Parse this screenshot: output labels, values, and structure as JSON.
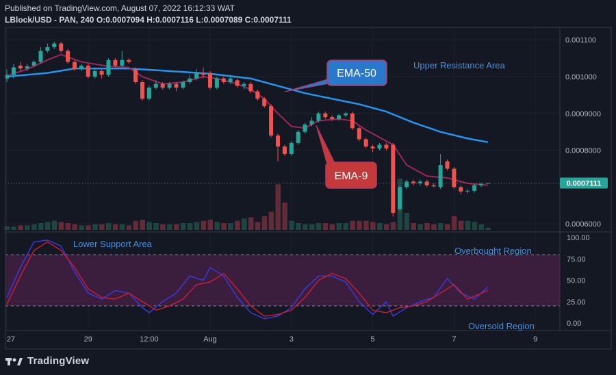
{
  "header": {
    "published": "Published on TradingView.com, August 07, 2022 16:12:33 WAT",
    "symbol": "LBlock/USD - PAN, 240",
    "ohlc": "O:0.0007094 H:0.0007116 L:0.0007089 C:0.0007111"
  },
  "brand": "TradingView",
  "colors": {
    "up": "#26a69a",
    "down": "#ef5350",
    "ema50": "#2196f3",
    "ema9": "#9c2758",
    "rsi_zone": "#3b1d3d",
    "price_tag": "#26a69a"
  },
  "price_axis": {
    "ticks": [
      {
        "value": 0.0011,
        "label": "0.001100"
      },
      {
        "value": 0.001,
        "label": "0.001000"
      },
      {
        "value": 0.0009,
        "label": "0.0009000"
      },
      {
        "value": 0.0008,
        "label": "0.0008000"
      },
      {
        "value": 0.0006,
        "label": "0.0006000"
      }
    ],
    "last_price": {
      "value": 0.0007111,
      "label": "0.0007111"
    }
  },
  "rsi_axis": {
    "ticks": [
      {
        "value": 100,
        "label": "100.00"
      },
      {
        "value": 75,
        "label": "75.00"
      },
      {
        "value": 50,
        "label": "50.00"
      },
      {
        "value": 25,
        "label": "25.00"
      },
      {
        "value": 0,
        "label": "0.00"
      }
    ]
  },
  "time_axis": {
    "ticks": [
      {
        "t": 0,
        "label": "27"
      },
      {
        "t": 12,
        "label": "29"
      },
      {
        "t": 21,
        "label": "12:00"
      },
      {
        "t": 30,
        "label": "Aug"
      },
      {
        "t": 42,
        "label": "3"
      },
      {
        "t": 54,
        "label": "5"
      },
      {
        "t": 66,
        "label": "7"
      },
      {
        "t": 78,
        "label": "9"
      }
    ]
  },
  "annotations": {
    "ema50": "EMA-50",
    "ema9": "EMA-9",
    "upper_resistance": "Upper Resistance Area",
    "lower_support": "Lower Support Area",
    "overbought": "Overbought Region",
    "oversold": "Oversold Region"
  },
  "chart_data": {
    "type": "candlestick",
    "candles": [
      {
        "t": 0,
        "o": 0.000995,
        "c": 0.001005,
        "h": 0.00102,
        "l": 0.000985
      },
      {
        "t": 1,
        "o": 0.001005,
        "c": 0.001025,
        "h": 0.001035,
        "l": 0.000995
      },
      {
        "t": 2,
        "o": 0.00103,
        "c": 0.001022,
        "h": 0.00104,
        "l": 0.001015
      },
      {
        "t": 3,
        "o": 0.001022,
        "c": 0.001028,
        "h": 0.001035,
        "l": 0.001015
      },
      {
        "t": 4,
        "o": 0.00103,
        "c": 0.00104,
        "h": 0.001045,
        "l": 0.001025
      },
      {
        "t": 5,
        "o": 0.00104,
        "c": 0.00107,
        "h": 0.00108,
        "l": 0.001035
      },
      {
        "t": 6,
        "o": 0.00107,
        "c": 0.00108,
        "h": 0.00109,
        "l": 0.001065
      },
      {
        "t": 7,
        "o": 0.00108,
        "c": 0.00109,
        "h": 0.001095,
        "l": 0.001075
      },
      {
        "t": 8,
        "o": 0.00109,
        "c": 0.00107,
        "h": 0.001095,
        "l": 0.001065
      },
      {
        "t": 9,
        "o": 0.00107,
        "c": 0.00104,
        "h": 0.001075,
        "l": 0.001035
      },
      {
        "t": 10,
        "o": 0.00104,
        "c": 0.00102,
        "h": 0.001045,
        "l": 0.001015
      },
      {
        "t": 11,
        "o": 0.00102,
        "c": 0.00103,
        "h": 0.001035,
        "l": 0.001015
      },
      {
        "t": 12,
        "o": 0.00103,
        "c": 0.001,
        "h": 0.001035,
        "l": 0.000995
      },
      {
        "t": 13,
        "o": 0.001,
        "c": 0.001015,
        "h": 0.001025,
        "l": 0.000995
      },
      {
        "t": 14,
        "o": 0.001015,
        "c": 0.001005,
        "h": 0.00102,
        "l": 0.000995
      },
      {
        "t": 15,
        "o": 0.001005,
        "c": 0.001045,
        "h": 0.00105,
        "l": 0.001
      },
      {
        "t": 16,
        "o": 0.001045,
        "c": 0.00103,
        "h": 0.00105,
        "l": 0.001025
      },
      {
        "t": 17,
        "o": 0.00103,
        "c": 0.001045,
        "h": 0.00107,
        "l": 0.001025
      },
      {
        "t": 18,
        "o": 0.001045,
        "c": 0.00104,
        "h": 0.00105,
        "l": 0.001035
      },
      {
        "t": 19,
        "o": 0.00102,
        "c": 0.000985,
        "h": 0.001025,
        "l": 0.00098
      },
      {
        "t": 20,
        "o": 0.000985,
        "c": 0.00094,
        "h": 0.00099,
        "l": 0.000935
      },
      {
        "t": 21,
        "o": 0.00094,
        "c": 0.00097,
        "h": 0.000975,
        "l": 0.000935
      },
      {
        "t": 22,
        "o": 0.00097,
        "c": 0.00098,
        "h": 0.00099,
        "l": 0.000965
      },
      {
        "t": 23,
        "o": 0.00098,
        "c": 0.00097,
        "h": 0.000985,
        "l": 0.000965
      },
      {
        "t": 24,
        "o": 0.00097,
        "c": 0.00098,
        "h": 0.000985,
        "l": 0.000965
      },
      {
        "t": 25,
        "o": 0.00098,
        "c": 0.00097,
        "h": 0.000985,
        "l": 0.00096
      },
      {
        "t": 26,
        "o": 0.00097,
        "c": 0.000985,
        "h": 0.00099,
        "l": 0.000965
      },
      {
        "t": 27,
        "o": 0.000985,
        "c": 0.000995,
        "h": 0.001005,
        "l": 0.00098
      },
      {
        "t": 28,
        "o": 0.000995,
        "c": 0.00101,
        "h": 0.00102,
        "l": 0.00099
      },
      {
        "t": 29,
        "o": 0.00101,
        "c": 0.001005,
        "h": 0.001025,
        "l": 0.000995
      },
      {
        "t": 30,
        "o": 0.00101,
        "c": 0.00097,
        "h": 0.001015,
        "l": 0.000965
      },
      {
        "t": 31,
        "o": 0.00097,
        "c": 0.000995,
        "h": 0.001,
        "l": 0.000965
      },
      {
        "t": 32,
        "o": 0.000995,
        "c": 0.000985,
        "h": 0.001,
        "l": 0.00098
      },
      {
        "t": 33,
        "o": 0.000985,
        "c": 0.000995,
        "h": 0.001005,
        "l": 0.00098
      },
      {
        "t": 34,
        "o": 0.00099,
        "c": 0.000975,
        "h": 0.000995,
        "l": 0.00097
      },
      {
        "t": 35,
        "o": 0.000975,
        "c": 0.00098,
        "h": 0.000985,
        "l": 0.000965
      },
      {
        "t": 36,
        "o": 0.00098,
        "c": 0.00096,
        "h": 0.000985,
        "l": 0.000955
      },
      {
        "t": 37,
        "o": 0.00096,
        "c": 0.00094,
        "h": 0.000965,
        "l": 0.000935
      },
      {
        "t": 38,
        "o": 0.00094,
        "c": 0.00092,
        "h": 0.000945,
        "l": 0.000915
      },
      {
        "t": 39,
        "o": 0.00092,
        "c": 0.00084,
        "h": 0.000925,
        "l": 0.000835
      },
      {
        "t": 40,
        "o": 0.00084,
        "c": 0.00081,
        "h": 0.000845,
        "l": 0.00077
      },
      {
        "t": 41,
        "o": 0.00081,
        "c": 0.00079,
        "h": 0.000815,
        "l": 0.000785
      },
      {
        "t": 42,
        "o": 0.00079,
        "c": 0.00082,
        "h": 0.000825,
        "l": 0.000785
      },
      {
        "t": 43,
        "o": 0.00082,
        "c": 0.00085,
        "h": 0.000855,
        "l": 0.000815
      },
      {
        "t": 44,
        "o": 0.00085,
        "c": 0.00087,
        "h": 0.000875,
        "l": 0.000845
      },
      {
        "t": 45,
        "o": 0.00087,
        "c": 0.00088,
        "h": 0.00089,
        "l": 0.000865
      },
      {
        "t": 46,
        "o": 0.00088,
        "c": 0.0009,
        "h": 0.000905,
        "l": 0.000875
      },
      {
        "t": 47,
        "o": 0.0009,
        "c": 0.00089,
        "h": 0.000905,
        "l": 0.000885
      },
      {
        "t": 48,
        "o": 0.00089,
        "c": 0.000885,
        "h": 0.000895,
        "l": 0.00088
      },
      {
        "t": 49,
        "o": 0.000885,
        "c": 0.000895,
        "h": 0.0009,
        "l": 0.00088
      },
      {
        "t": 50,
        "o": 0.000895,
        "c": 0.0009,
        "h": 0.000905,
        "l": 0.00089
      },
      {
        "t": 51,
        "o": 0.0009,
        "c": 0.00086,
        "h": 0.000905,
        "l": 0.000855
      },
      {
        "t": 52,
        "o": 0.00086,
        "c": 0.00083,
        "h": 0.000865,
        "l": 0.000825
      },
      {
        "t": 53,
        "o": 0.00083,
        "c": 0.00081,
        "h": 0.000835,
        "l": 0.000805
      },
      {
        "t": 54,
        "o": 0.00081,
        "c": 0.000805,
        "h": 0.000815,
        "l": 0.000795
      },
      {
        "t": 55,
        "o": 0.000805,
        "c": 0.000815,
        "h": 0.00082,
        "l": 0.0008
      },
      {
        "t": 56,
        "o": 0.000815,
        "c": 0.000805,
        "h": 0.00082,
        "l": 0.0008
      },
      {
        "t": 57,
        "o": 0.000815,
        "c": 0.00063,
        "h": 0.00082,
        "l": 0.00062
      },
      {
        "t": 58,
        "o": 0.00064,
        "c": 0.0007,
        "h": 0.000705,
        "l": 0.000635
      },
      {
        "t": 59,
        "o": 0.0007,
        "c": 0.000715,
        "h": 0.00072,
        "l": 0.000695
      },
      {
        "t": 60,
        "o": 0.000715,
        "c": 0.00071,
        "h": 0.00072,
        "l": 0.000705
      },
      {
        "t": 61,
        "o": 0.00071,
        "c": 0.000715,
        "h": 0.00072,
        "l": 0.000705
      },
      {
        "t": 62,
        "o": 0.000715,
        "c": 0.000705,
        "h": 0.00072,
        "l": 0.0007
      },
      {
        "t": 63,
        "o": 0.000705,
        "c": 0.000702,
        "h": 0.00071,
        "l": 0.0007
      },
      {
        "t": 64,
        "o": 0.0007,
        "c": 0.00076,
        "h": 0.00079,
        "l": 0.000695
      },
      {
        "t": 65,
        "o": 0.00077,
        "c": 0.00075,
        "h": 0.000775,
        "l": 0.000745
      },
      {
        "t": 66,
        "o": 0.00075,
        "c": 0.0007,
        "h": 0.000755,
        "l": 0.000695
      },
      {
        "t": 67,
        "o": 0.0007,
        "c": 0.000688,
        "h": 0.000705,
        "l": 0.00068
      },
      {
        "t": 68,
        "o": 0.000688,
        "c": 0.00069,
        "h": 0.000695,
        "l": 0.000683
      },
      {
        "t": 69,
        "o": 0.00069,
        "c": 0.000705,
        "h": 0.00071,
        "l": 0.000685
      },
      {
        "t": 70,
        "o": 0.000705,
        "c": 0.000709,
        "h": 0.000712,
        "l": 0.0007
      },
      {
        "t": 71,
        "o": 0.0007094,
        "c": 0.0007111,
        "h": 0.0007116,
        "l": 0.0007089
      }
    ],
    "volume": [
      3,
      3,
      4,
      4,
      5,
      6,
      7,
      8,
      7,
      6,
      5,
      4,
      4,
      5,
      5,
      6,
      5,
      5,
      4,
      8,
      9,
      7,
      6,
      5,
      5,
      5,
      6,
      6,
      7,
      8,
      9,
      7,
      6,
      6,
      8,
      10,
      11,
      7,
      12,
      16,
      40,
      24,
      8,
      6,
      5,
      5,
      6,
      6,
      5,
      6,
      6,
      8,
      8,
      8,
      7,
      6,
      5,
      7,
      45,
      15,
      6,
      5,
      6,
      5,
      6,
      5,
      12,
      8,
      8,
      7,
      5,
      2
    ],
    "ema50": [
      {
        "t": 0,
        "v": 0.001
      },
      {
        "t": 6,
        "v": 0.00101
      },
      {
        "t": 10,
        "v": 0.001022
      },
      {
        "t": 18,
        "v": 0.001022
      },
      {
        "t": 24,
        "v": 0.001015
      },
      {
        "t": 30,
        "v": 0.001008
      },
      {
        "t": 36,
        "v": 0.000995
      },
      {
        "t": 40,
        "v": 0.000975
      },
      {
        "t": 44,
        "v": 0.000955
      },
      {
        "t": 48,
        "v": 0.00094
      },
      {
        "t": 52,
        "v": 0.000925
      },
      {
        "t": 56,
        "v": 0.000905
      },
      {
        "t": 60,
        "v": 0.000875
      },
      {
        "t": 64,
        "v": 0.00085
      },
      {
        "t": 68,
        "v": 0.000832
      },
      {
        "t": 71,
        "v": 0.000822
      }
    ],
    "ema9": [
      {
        "t": 0,
        "v": 0.001002
      },
      {
        "t": 3,
        "v": 0.00102
      },
      {
        "t": 6,
        "v": 0.001045
      },
      {
        "t": 8,
        "v": 0.00106
      },
      {
        "t": 11,
        "v": 0.00104
      },
      {
        "t": 15,
        "v": 0.001028
      },
      {
        "t": 18,
        "v": 0.001025
      },
      {
        "t": 20,
        "v": 0.001
      },
      {
        "t": 23,
        "v": 0.00098
      },
      {
        "t": 26,
        "v": 0.000985
      },
      {
        "t": 29,
        "v": 0.001
      },
      {
        "t": 31,
        "v": 0.000995
      },
      {
        "t": 34,
        "v": 0.00098
      },
      {
        "t": 36,
        "v": 0.000965
      },
      {
        "t": 38,
        "v": 0.00094
      },
      {
        "t": 40,
        "v": 0.0009
      },
      {
        "t": 42,
        "v": 0.000865
      },
      {
        "t": 44,
        "v": 0.00086
      },
      {
        "t": 46,
        "v": 0.00088
      },
      {
        "t": 49,
        "v": 0.000885
      },
      {
        "t": 51,
        "v": 0.00088
      },
      {
        "t": 53,
        "v": 0.000855
      },
      {
        "t": 55,
        "v": 0.000835
      },
      {
        "t": 57,
        "v": 0.000815
      },
      {
        "t": 59,
        "v": 0.00076
      },
      {
        "t": 62,
        "v": 0.00073
      },
      {
        "t": 65,
        "v": 0.000725
      },
      {
        "t": 68,
        "v": 0.00071
      },
      {
        "t": 71,
        "v": 0.000705
      }
    ],
    "rsi_fast": [
      {
        "t": 0,
        "v": 30
      },
      {
        "t": 2,
        "v": 65
      },
      {
        "t": 4,
        "v": 95
      },
      {
        "t": 6,
        "v": 97
      },
      {
        "t": 8,
        "v": 90
      },
      {
        "t": 10,
        "v": 60
      },
      {
        "t": 12,
        "v": 35
      },
      {
        "t": 14,
        "v": 28
      },
      {
        "t": 16,
        "v": 38
      },
      {
        "t": 18,
        "v": 35
      },
      {
        "t": 20,
        "v": 18
      },
      {
        "t": 21,
        "v": 12
      },
      {
        "t": 23,
        "v": 25
      },
      {
        "t": 25,
        "v": 35
      },
      {
        "t": 27,
        "v": 55
      },
      {
        "t": 29,
        "v": 50
      },
      {
        "t": 30,
        "v": 65
      },
      {
        "t": 32,
        "v": 55
      },
      {
        "t": 34,
        "v": 30
      },
      {
        "t": 36,
        "v": 12
      },
      {
        "t": 38,
        "v": 5
      },
      {
        "t": 40,
        "v": 8
      },
      {
        "t": 42,
        "v": 18
      },
      {
        "t": 44,
        "v": 40
      },
      {
        "t": 46,
        "v": 55
      },
      {
        "t": 48,
        "v": 55
      },
      {
        "t": 50,
        "v": 48
      },
      {
        "t": 52,
        "v": 25
      },
      {
        "t": 54,
        "v": 10
      },
      {
        "t": 56,
        "v": 25
      },
      {
        "t": 57,
        "v": 8
      },
      {
        "t": 59,
        "v": 18
      },
      {
        "t": 61,
        "v": 25
      },
      {
        "t": 63,
        "v": 30
      },
      {
        "t": 65,
        "v": 52
      },
      {
        "t": 67,
        "v": 35
      },
      {
        "t": 69,
        "v": 28
      },
      {
        "t": 71,
        "v": 42
      }
    ],
    "rsi_slow": [
      {
        "t": 0,
        "v": 22
      },
      {
        "t": 2,
        "v": 55
      },
      {
        "t": 4,
        "v": 85
      },
      {
        "t": 6,
        "v": 95
      },
      {
        "t": 8,
        "v": 85
      },
      {
        "t": 10,
        "v": 65
      },
      {
        "t": 12,
        "v": 40
      },
      {
        "t": 14,
        "v": 30
      },
      {
        "t": 16,
        "v": 28
      },
      {
        "t": 18,
        "v": 35
      },
      {
        "t": 20,
        "v": 25
      },
      {
        "t": 22,
        "v": 15
      },
      {
        "t": 24,
        "v": 20
      },
      {
        "t": 26,
        "v": 28
      },
      {
        "t": 28,
        "v": 45
      },
      {
        "t": 30,
        "v": 48
      },
      {
        "t": 32,
        "v": 58
      },
      {
        "t": 34,
        "v": 40
      },
      {
        "t": 36,
        "v": 20
      },
      {
        "t": 38,
        "v": 8
      },
      {
        "t": 40,
        "v": 10
      },
      {
        "t": 42,
        "v": 15
      },
      {
        "t": 44,
        "v": 30
      },
      {
        "t": 46,
        "v": 50
      },
      {
        "t": 48,
        "v": 58
      },
      {
        "t": 50,
        "v": 52
      },
      {
        "t": 52,
        "v": 35
      },
      {
        "t": 54,
        "v": 15
      },
      {
        "t": 56,
        "v": 12
      },
      {
        "t": 58,
        "v": 18
      },
      {
        "t": 60,
        "v": 20
      },
      {
        "t": 62,
        "v": 25
      },
      {
        "t": 64,
        "v": 35
      },
      {
        "t": 66,
        "v": 45
      },
      {
        "t": 68,
        "v": 28
      },
      {
        "t": 71,
        "v": 38
      }
    ],
    "rsi_levels": {
      "overbought": 80,
      "oversold": 20
    },
    "rsi_range": [
      -8,
      105
    ],
    "price_range": [
      0.00058,
      0.00113
    ]
  }
}
